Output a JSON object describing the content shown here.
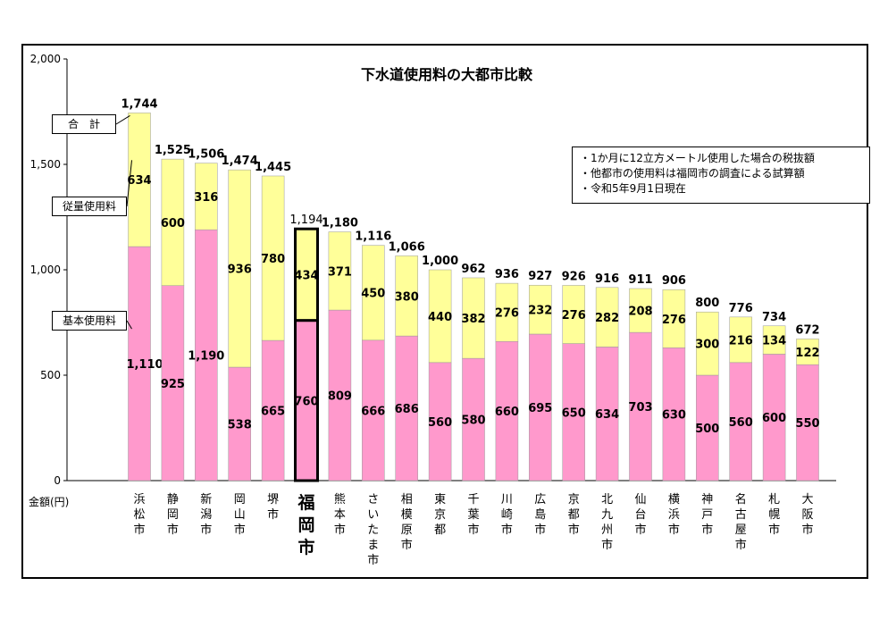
{
  "chart_data": {
    "type": "bar",
    "stacked": true,
    "title": "下水道使用料の大都市比較",
    "ylabel": "金額(円)",
    "ylim": [
      0,
      2000
    ],
    "yticks": [
      0,
      500,
      1000,
      1500,
      2000
    ],
    "ytick_labels": [
      "0",
      "500",
      "1,000",
      "1,500",
      "2,000"
    ],
    "grid": false,
    "highlight_category": "福岡市",
    "categories": [
      "浜松市",
      "静岡市",
      "新潟市",
      "岡山市",
      "堺市",
      "福岡市",
      "熊本市",
      "さいたま市",
      "相模原市",
      "東京都",
      "千葉市",
      "川崎市",
      "広島市",
      "京都市",
      "北九州市",
      "仙台市",
      "横浜市",
      "神戸市",
      "名古屋市",
      "札幌市",
      "大阪市"
    ],
    "series": [
      {
        "name": "基本使用料",
        "color": "#ff99cc",
        "values": [
          1110,
          925,
          1190,
          538,
          665,
          760,
          809,
          666,
          686,
          560,
          580,
          660,
          695,
          650,
          634,
          703,
          630,
          500,
          560,
          600,
          550
        ],
        "labels": [
          "1,110",
          "925",
          "1,190",
          "538",
          "665",
          "760",
          "809",
          "666",
          "686",
          "560",
          "580",
          "660",
          "695",
          "650",
          "634",
          "703",
          "630",
          "500",
          "560",
          "600",
          "550"
        ]
      },
      {
        "name": "従量使用料",
        "color": "#ffff99",
        "values": [
          634,
          600,
          316,
          936,
          780,
          434,
          371,
          450,
          380,
          440,
          382,
          276,
          232,
          276,
          282,
          208,
          276,
          300,
          216,
          134,
          122
        ],
        "labels": [
          "634",
          "600",
          "316",
          "936",
          "780",
          "434",
          "371",
          "450",
          "380",
          "440",
          "382",
          "276",
          "232",
          "276",
          "282",
          "208",
          "276",
          "300",
          "216",
          "134",
          "122"
        ]
      }
    ],
    "totals": [
      1744,
      1525,
      1506,
      1474,
      1445,
      1194,
      1180,
      1116,
      1066,
      1000,
      962,
      936,
      927,
      926,
      916,
      911,
      906,
      800,
      776,
      734,
      672
    ],
    "total_labels": [
      "1,744",
      "1,525",
      "1,506",
      "1,474",
      "1,445",
      "1,194",
      "1,180",
      "1,116",
      "1,066",
      "1,000",
      "962",
      "936",
      "927",
      "926",
      "916",
      "911",
      "906",
      "800",
      "776",
      "734",
      "672"
    ],
    "callouts": {
      "total": "合　計",
      "usage": "従量使用料",
      "base": "基本使用料"
    },
    "notes": [
      "・1か月に12立方メートル使用した場合の税抜額",
      "・他都市の使用料は福岡市の調査による試算額",
      "・令和5年9月1日現在"
    ]
  }
}
